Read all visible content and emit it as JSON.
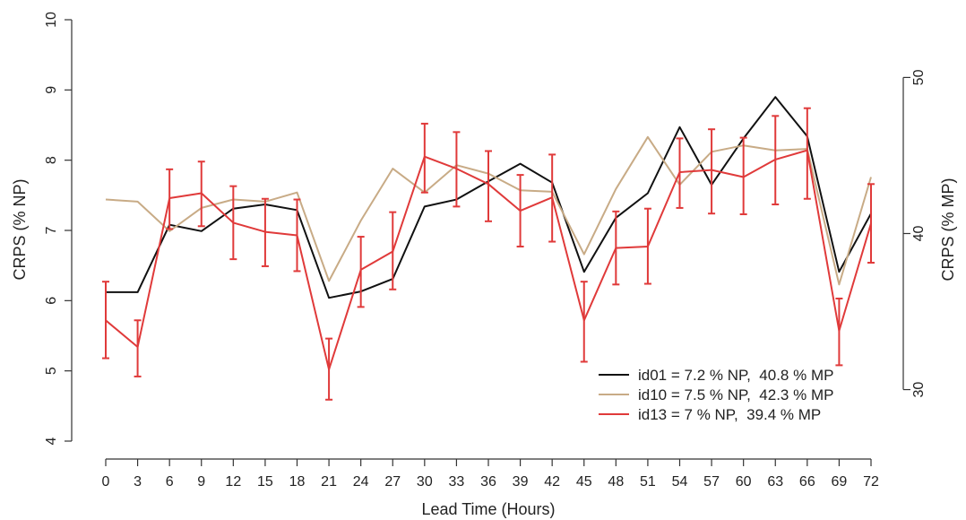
{
  "chart_data": {
    "type": "line",
    "xlabel": "Lead Time (Hours)",
    "ylabel": "CRPS (% NP)",
    "ylabel_right": "CRPS (% MP)",
    "x": [
      0,
      3,
      6,
      9,
      12,
      15,
      18,
      21,
      24,
      27,
      30,
      33,
      36,
      39,
      42,
      45,
      48,
      51,
      54,
      57,
      60,
      63,
      66,
      69,
      72
    ],
    "xticks": [
      "0",
      "3",
      "6",
      "9",
      "12",
      "15",
      "18",
      "21",
      "24",
      "27",
      "30",
      "33",
      "36",
      "39",
      "42",
      "45",
      "48",
      "51",
      "54",
      "57",
      "60",
      "63",
      "66",
      "69",
      "72"
    ],
    "ylim": [
      4,
      10
    ],
    "yticks": [
      "4",
      "5",
      "6",
      "7",
      "8",
      "9",
      "10"
    ],
    "ylim_right": [
      26.7,
      53.7
    ],
    "yticks_right": [
      "30",
      "40",
      "50"
    ],
    "legend_position": "bottom-right",
    "series": [
      {
        "name": "id01 = 7.2 % NP,  40.8 % MP",
        "color": "#111111",
        "values": [
          6.12,
          6.12,
          7.08,
          6.99,
          7.31,
          7.37,
          7.29,
          6.04,
          6.13,
          6.31,
          7.34,
          7.44,
          7.7,
          7.95,
          7.68,
          6.41,
          7.18,
          7.53,
          8.47,
          7.65,
          8.31,
          8.9,
          8.34,
          6.41,
          7.24
        ]
      },
      {
        "name": "id10 = 7.5 % NP,  42.3 % MP",
        "color": "#c8ab86",
        "values": [
          7.44,
          7.41,
          6.99,
          7.32,
          7.44,
          7.41,
          7.54,
          6.28,
          7.14,
          7.88,
          7.54,
          7.93,
          7.81,
          7.57,
          7.55,
          6.66,
          7.59,
          8.33,
          7.65,
          8.12,
          8.21,
          8.14,
          8.16,
          6.23,
          7.76
        ]
      },
      {
        "name": "id13 = 7 % NP,  39.4 % MP",
        "color": "#e03a3a",
        "values": [
          5.72,
          5.34,
          7.46,
          7.53,
          7.11,
          6.98,
          6.93,
          5.02,
          6.44,
          6.7,
          8.05,
          7.88,
          7.66,
          7.28,
          7.47,
          5.72,
          6.75,
          6.77,
          7.83,
          7.86,
          7.76,
          8.01,
          8.14,
          5.57,
          7.1
        ],
        "err_low": [
          5.18,
          4.92,
          7.02,
          7.06,
          6.59,
          6.49,
          6.42,
          4.59,
          5.91,
          6.16,
          7.54,
          7.34,
          7.13,
          6.77,
          6.84,
          5.13,
          6.23,
          6.24,
          7.32,
          7.24,
          7.23,
          7.37,
          7.45,
          5.08,
          6.54
        ],
        "err_high": [
          6.27,
          5.72,
          7.87,
          7.98,
          7.63,
          7.45,
          7.44,
          5.46,
          6.91,
          7.26,
          8.52,
          8.4,
          8.13,
          7.79,
          8.08,
          6.27,
          7.27,
          7.31,
          8.31,
          8.44,
          8.32,
          8.63,
          8.74,
          6.03,
          7.66
        ]
      }
    ]
  }
}
